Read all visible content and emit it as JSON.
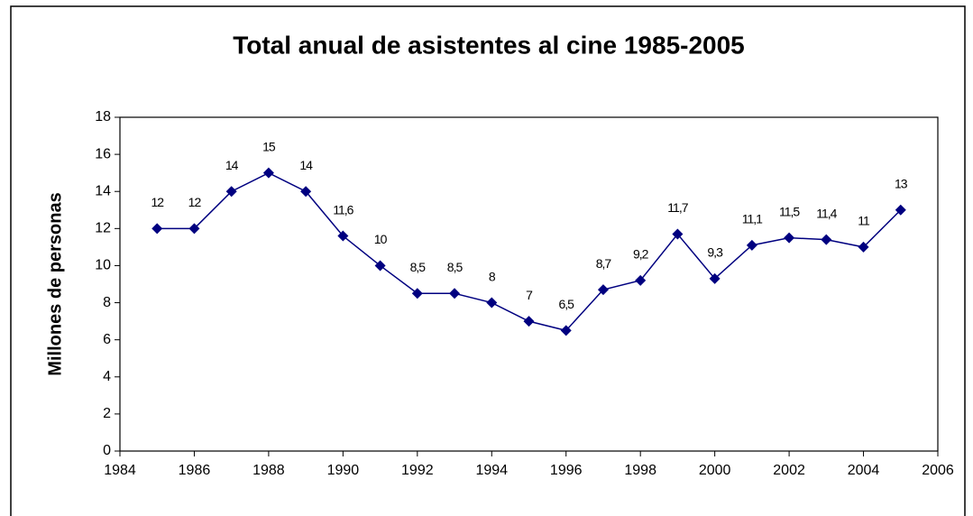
{
  "chart_data": {
    "type": "line",
    "title": "Total anual de asistentes al cine 1985-2005",
    "y_label": "Millones de personas",
    "x": [
      1985,
      1986,
      1987,
      1988,
      1989,
      1990,
      1991,
      1992,
      1993,
      1994,
      1995,
      1996,
      1997,
      1998,
      1999,
      2000,
      2001,
      2002,
      2003,
      2004,
      2005
    ],
    "series": [
      {
        "name": "Asistentes",
        "color": "#000080",
        "values": [
          12,
          12,
          14,
          15,
          14,
          11.6,
          10,
          8.5,
          8.5,
          8,
          7,
          6.5,
          8.7,
          9.2,
          11.7,
          9.3,
          11.1,
          11.5,
          11.4,
          11,
          13
        ],
        "value_labels": [
          "12",
          "12",
          "14",
          "15",
          "14",
          "11,6",
          "10",
          "8,5",
          "8,5",
          "8",
          "7",
          "6,5",
          "8,7",
          "9,2",
          "11,7",
          "9,3",
          "11,1",
          "11,5",
          "11,4",
          "11",
          "13"
        ]
      }
    ],
    "xlim": [
      1984,
      2006
    ],
    "xticks": [
      1984,
      1986,
      1988,
      1990,
      1992,
      1994,
      1996,
      1998,
      2000,
      2002,
      2004,
      2006
    ],
    "ylim": [
      0,
      18
    ],
    "yticks": [
      0,
      2,
      4,
      6,
      8,
      10,
      12,
      14,
      16,
      18
    ],
    "grid": false,
    "legend": false
  }
}
